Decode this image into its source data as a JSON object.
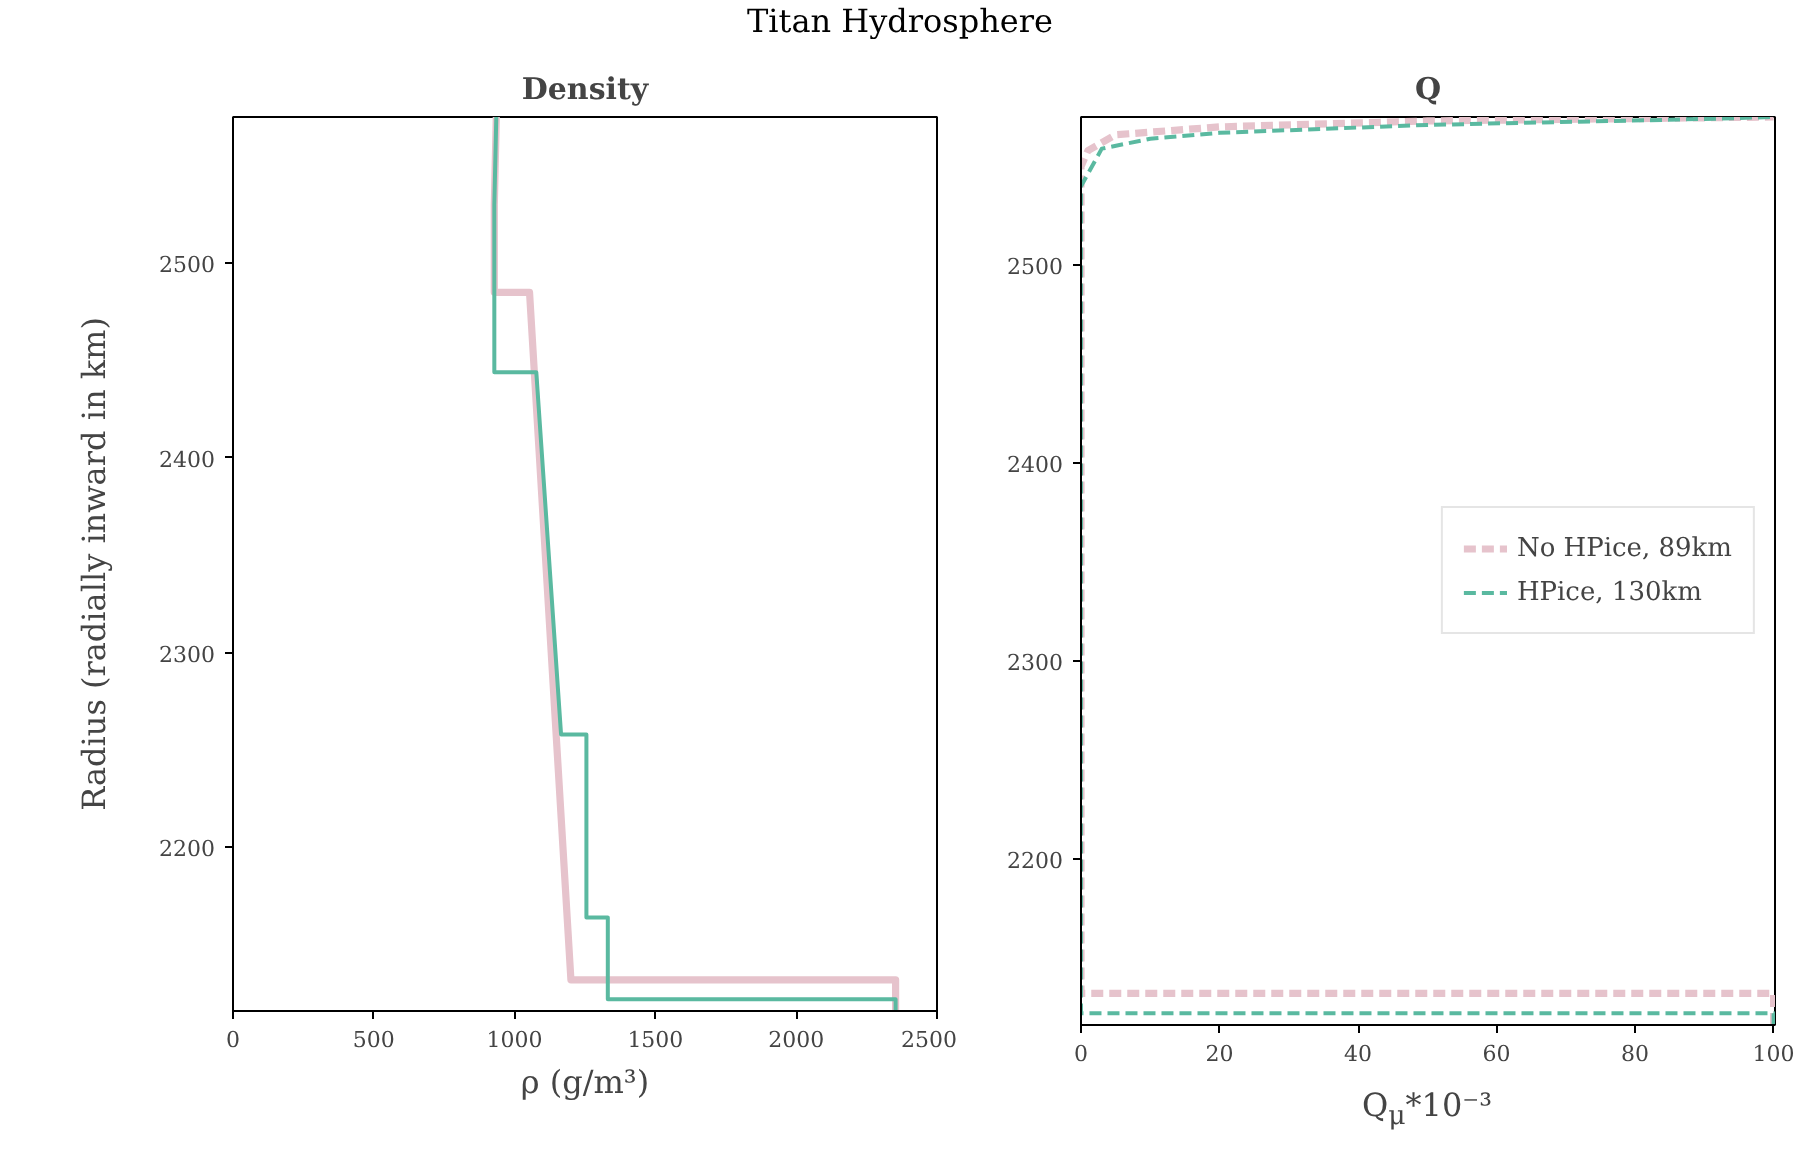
{
  "chart_data": [
    {
      "type": "line",
      "title": "Density",
      "xlabel": "ρ (g/m³)",
      "ylabel": "Radius (radially inward in km)",
      "annotations": [
        "Titan Hydrosphere"
      ],
      "xlim": [
        0,
        2500
      ],
      "xticks": [
        0,
        500,
        1000,
        1500,
        2000,
        2500
      ],
      "ylim": [
        2116,
        2575
      ],
      "yticks": [
        2200,
        2300,
        2400,
        2500
      ],
      "grid": false,
      "legend": false,
      "line_style": "solid",
      "series": [
        {
          "color": "#e6c3cc",
          "x": [
            935,
            928,
            928,
            1053,
            1200,
            2353,
            2353
          ],
          "values": [
            2575,
            2530,
            2485,
            2485,
            2132,
            2132,
            2116
          ]
        },
        {
          "color": "#5ab9a0",
          "x": [
            935,
            928,
            928,
            1077,
            1165,
            1255,
            1255,
            1331,
            1331,
            2353,
            2353
          ],
          "values": [
            2575,
            2530,
            2444,
            2444,
            2258,
            2258,
            2164,
            2164,
            2122,
            2122,
            2116
          ]
        }
      ]
    },
    {
      "type": "line",
      "title": "Q",
      "xlabel": "Q$_{μ}$*10⁻³",
      "xlim": [
        0,
        100.2
      ],
      "xticks": [
        0,
        20,
        40,
        60,
        80,
        100
      ],
      "ylim": [
        2116,
        2575
      ],
      "yticks": [
        2200,
        2300,
        2400,
        2500
      ],
      "grid": false,
      "legend": "right",
      "line_style": "dashed",
      "series": [
        {
          "name": "No HPice, 89km",
          "color": "#e6c3cc",
          "x": [
            100,
            100,
            0,
            0,
            1,
            5,
            20,
            50,
            100
          ],
          "values": [
            2116,
            2132,
            2132,
            2550,
            2558,
            2566,
            2570,
            2573,
            2575
          ]
        },
        {
          "name": "HPice, 130km",
          "color": "#5ab9a0",
          "x": [
            100,
            100,
            0,
            0,
            3,
            10,
            20,
            50,
            90,
            100
          ],
          "values": [
            2116,
            2122,
            2122,
            2540,
            2559,
            2564,
            2567,
            2571,
            2574,
            2575
          ]
        }
      ]
    }
  ]
}
